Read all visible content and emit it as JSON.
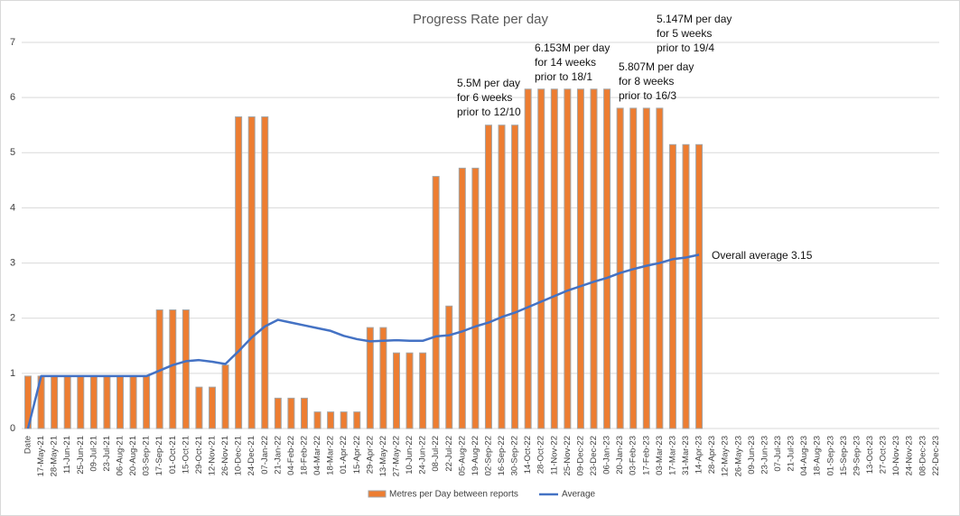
{
  "chart_data": {
    "type": "bar_line",
    "title": "Progress Rate per day",
    "categories": [
      "Date",
      "17-May-21",
      "28-May-21",
      "11-Jun-21",
      "25-Jun-21",
      "09-Jul-21",
      "23-Jul-21",
      "06-Aug-21",
      "20-Aug-21",
      "03-Sep-21",
      "17-Sep-21",
      "01-Oct-21",
      "15-Oct-21",
      "29-Oct-21",
      "12-Nov-21",
      "26-Nov-21",
      "10-Dec-21",
      "24-Dec-21",
      "07-Jan-22",
      "21-Jan-22",
      "04-Feb-22",
      "18-Feb-22",
      "04-Mar-22",
      "18-Mar-22",
      "01-Apr-22",
      "15-Apr-22",
      "29-Apr-22",
      "13-May-22",
      "27-May-22",
      "10-Jun-22",
      "24-Jun-22",
      "08-Jul-22",
      "22-Jul-22",
      "05-Aug-22",
      "19-Aug-22",
      "02-Sep-22",
      "16-Sep-22",
      "30-Sep-22",
      "14-Oct-22",
      "28-Oct-22",
      "11-Nov-22",
      "25-Nov-22",
      "09-Dec-22",
      "23-Dec-22",
      "06-Jan-23",
      "20-Jan-23",
      "03-Feb-23",
      "17-Feb-23",
      "03-Mar-23",
      "17-Mar-23",
      "31-Mar-23",
      "14-Apr-23",
      "28-Apr-23",
      "12-May-23",
      "26-May-23",
      "09-Jun-23",
      "23-Jun-23",
      "07-Jul-23",
      "21-Jul-23",
      "04-Aug-23",
      "18-Aug-23",
      "01-Sep-23",
      "15-Sep-23",
      "29-Sep-23",
      "13-Oct-23",
      "27-Oct-23",
      "10-Nov-23",
      "24-Nov-23",
      "08-Dec-23",
      "22-Dec-23"
    ],
    "series": [
      {
        "name": "Metres per Day between reports",
        "type": "bar",
        "color": "#ed7d31",
        "values": [
          0.95,
          0.95,
          0.95,
          0.95,
          0.95,
          0.95,
          0.95,
          0.95,
          0.95,
          0.95,
          2.15,
          2.15,
          2.15,
          0.75,
          0.75,
          1.15,
          5.65,
          5.65,
          5.65,
          0.55,
          0.55,
          0.55,
          0.3,
          0.3,
          0.3,
          0.3,
          1.83,
          1.83,
          1.37,
          1.37,
          1.37,
          4.57,
          2.22,
          4.72,
          4.72,
          5.5,
          5.5,
          5.5,
          6.153,
          6.153,
          6.153,
          6.153,
          6.153,
          6.153,
          6.153,
          5.807,
          5.807,
          5.807,
          5.807,
          5.147,
          5.147,
          5.147,
          null,
          null,
          null,
          null,
          null,
          null,
          null,
          null,
          null,
          null,
          null,
          null,
          null,
          null,
          null,
          null,
          null,
          null
        ]
      },
      {
        "name": "Average",
        "type": "line",
        "color": "#4472c4",
        "values": [
          0,
          0.95,
          0.95,
          0.95,
          0.95,
          0.95,
          0.95,
          0.95,
          0.95,
          0.95,
          1.05,
          1.15,
          1.22,
          1.24,
          1.21,
          1.17,
          1.4,
          1.65,
          1.85,
          1.97,
          1.92,
          1.87,
          1.82,
          1.77,
          1.68,
          1.62,
          1.58,
          1.59,
          1.6,
          1.59,
          1.59,
          1.67,
          1.69,
          1.76,
          1.85,
          1.92,
          2.02,
          2.1,
          2.2,
          2.3,
          2.4,
          2.5,
          2.58,
          2.66,
          2.73,
          2.82,
          2.89,
          2.95,
          3.0,
          3.07,
          3.1,
          3.15,
          null,
          null,
          null,
          null,
          null,
          null,
          null,
          null,
          null,
          null,
          null,
          null,
          null,
          null,
          null,
          null,
          null,
          null
        ]
      }
    ],
    "ylim": [
      0,
      7
    ],
    "yticks": [
      0,
      1,
      2,
      3,
      4,
      5,
      6,
      7
    ],
    "grid": true,
    "legend": "bottom",
    "annotations": [
      [
        "5.5M per day",
        "for 6 weeks",
        "prior to 12/10"
      ],
      [
        "6.153M per day",
        "for 14 weeks",
        "prior to 18/1"
      ],
      [
        "5.807M per day",
        "for 8 weeks",
        "prior to 16/3"
      ],
      [
        "5.147M per day",
        "for 5 weeks",
        "prior to 19/4"
      ],
      [
        "Overall average 3.15"
      ]
    ]
  }
}
